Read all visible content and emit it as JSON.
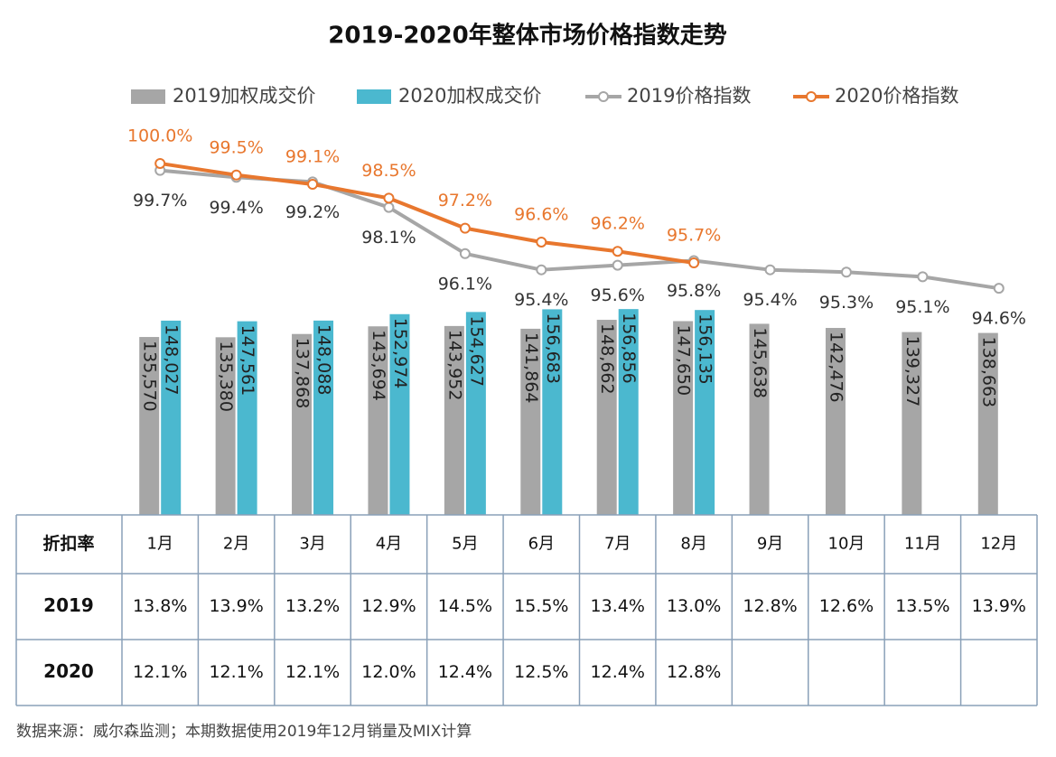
{
  "chart_data": {
    "type": "bar-line",
    "title": "2019-2020年整体市场价格指数走势",
    "categories": [
      "1月",
      "2月",
      "3月",
      "4月",
      "5月",
      "6月",
      "7月",
      "8月",
      "9月",
      "10月",
      "11月",
      "12月"
    ],
    "ylim": [
      0,
      296000
    ],
    "y2lim": [
      84.8,
      101.6
    ],
    "series": [
      {
        "name": "2019加权成交价",
        "type": "bar",
        "color": "#a6a6a6",
        "values": [
          135570,
          135380,
          137868,
          143694,
          143952,
          141864,
          148662,
          147650,
          145638,
          142476,
          139327,
          138663
        ],
        "value_labels": [
          "135,570",
          "135,380",
          "137,868",
          "143,694",
          "143,952",
          "141,864",
          "148,662",
          "147,650",
          "145,638",
          "142,476",
          "139,327",
          "138,663"
        ]
      },
      {
        "name": "2020加权成交价",
        "type": "bar",
        "color": "#4bb8cf",
        "values": [
          148027,
          147561,
          148088,
          152974,
          154627,
          156683,
          156856,
          156135,
          null,
          null,
          null,
          null
        ],
        "value_labels": [
          "148,027",
          "147,561",
          "148,088",
          "152,974",
          "154,627",
          "156,683",
          "156,856",
          "156,135",
          null,
          null,
          null,
          null
        ]
      },
      {
        "name": "2019价格指数",
        "type": "line",
        "axis": "y2",
        "color": "#a6a6a6",
        "values": [
          99.7,
          99.4,
          99.2,
          98.1,
          96.1,
          95.4,
          95.6,
          95.8,
          95.4,
          95.3,
          95.1,
          94.6
        ],
        "value_labels": [
          "99.7%",
          "99.4%",
          "99.2%",
          "98.1%",
          "96.1%",
          "95.4%",
          "95.6%",
          "95.8%",
          "95.4%",
          "95.3%",
          "95.1%",
          "94.6%"
        ]
      },
      {
        "name": "2020价格指数",
        "type": "line",
        "axis": "y2",
        "color": "#e8772e",
        "values": [
          100.0,
          99.5,
          99.1,
          98.5,
          97.2,
          96.6,
          96.2,
          95.7,
          null,
          null,
          null,
          null
        ],
        "value_labels": [
          "100.0%",
          "99.5%",
          "99.1%",
          "98.5%",
          "97.2%",
          "96.6%",
          "96.2%",
          "95.7%",
          null,
          null,
          null,
          null
        ]
      }
    ],
    "table": {
      "header": "折扣率",
      "rows": [
        {
          "label": "2019",
          "cells": [
            "13.8%",
            "13.9%",
            "13.2%",
            "12.9%",
            "14.5%",
            "15.5%",
            "13.4%",
            "13.0%",
            "12.8%",
            "12.6%",
            "13.5%",
            "13.9%"
          ]
        },
        {
          "label": "2020",
          "cells": [
            "12.1%",
            "12.1%",
            "12.1%",
            "12.0%",
            "12.4%",
            "12.5%",
            "12.4%",
            "12.8%",
            null,
            null,
            null,
            null
          ]
        }
      ]
    },
    "source": "数据来源：威尔森监测；本期数据使用2019年12月销量及MIX计算"
  }
}
